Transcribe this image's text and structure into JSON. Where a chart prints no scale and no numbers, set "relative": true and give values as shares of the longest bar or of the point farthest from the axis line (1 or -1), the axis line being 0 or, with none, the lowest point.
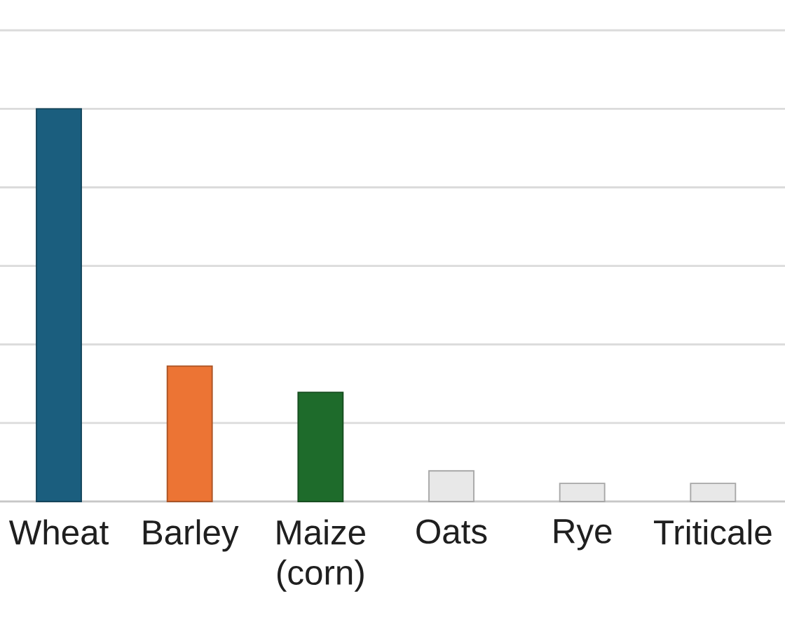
{
  "chart_data": {
    "type": "bar",
    "categories": [
      "Wheat",
      "Barley",
      "Maize (corn)",
      "Oats",
      "Rye",
      "Triticale"
    ],
    "values": [
      1,
      0.345,
      0.278,
      0.078,
      0.046,
      0.046
    ],
    "colors": [
      "#1b5e7e",
      "#ec7434",
      "#1e6b2b",
      "#e8e8e8",
      "#e8e8e8",
      "#e8e8e8"
    ],
    "relative": true,
    "grid": "y",
    "tick_labels": "x"
  }
}
